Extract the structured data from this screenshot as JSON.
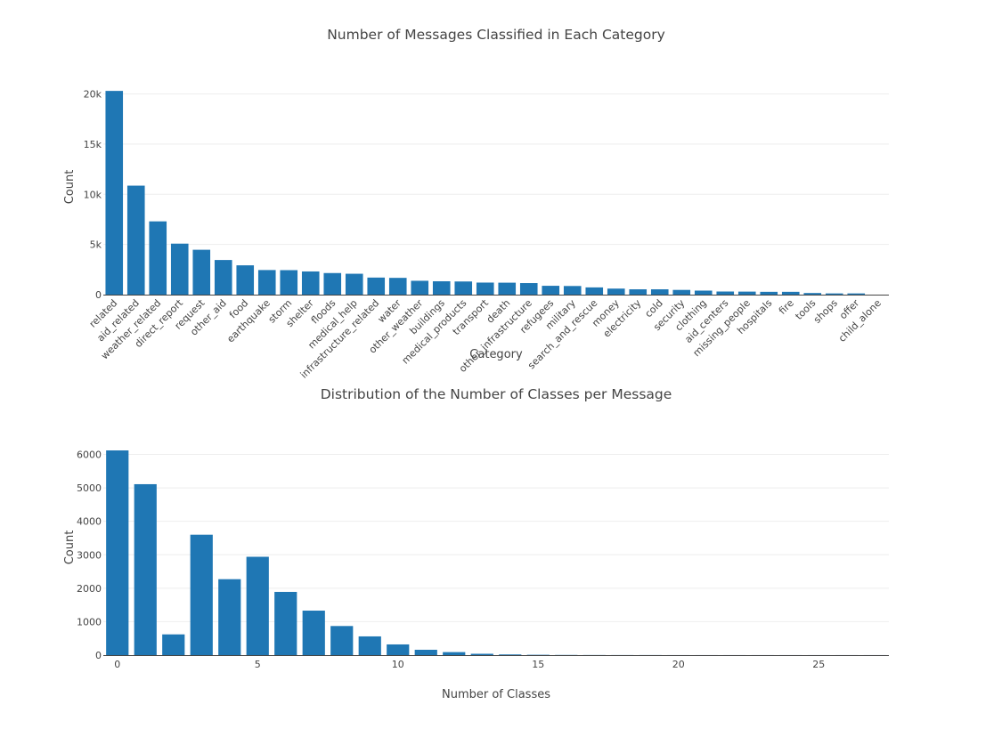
{
  "chart_data": [
    {
      "type": "bar",
      "title": "Number of Messages Classified in Each Category",
      "xlabel": "Category",
      "ylabel": "Count",
      "ylim": [
        0,
        20400
      ],
      "yticks": [
        0,
        5000,
        10000,
        15000,
        20000
      ],
      "ytick_labels": [
        "0",
        "5k",
        "10k",
        "15k",
        "20k"
      ],
      "grid": true,
      "bar_color": "#1f77b4",
      "categories": [
        "related",
        "aid_related",
        "weather_related",
        "direct_report",
        "request",
        "other_aid",
        "food",
        "earthquake",
        "storm",
        "shelter",
        "floods",
        "medical_help",
        "infrastructure_related",
        "water",
        "other_weather",
        "buildings",
        "medical_products",
        "transport",
        "death",
        "other_infrastructure",
        "refugees",
        "military",
        "search_and_rescue",
        "money",
        "electricity",
        "cold",
        "security",
        "clothing",
        "aid_centers",
        "missing_people",
        "hospitals",
        "fire",
        "tools",
        "shops",
        "offer",
        "child_alone"
      ],
      "values": [
        20300,
        10860,
        7300,
        5080,
        4470,
        3450,
        2920,
        2450,
        2440,
        2310,
        2150,
        2080,
        1700,
        1670,
        1380,
        1330,
        1310,
        1200,
        1190,
        1150,
        880,
        860,
        720,
        600,
        530,
        530,
        470,
        400,
        310,
        300,
        280,
        280,
        160,
        120,
        120,
        0
      ]
    },
    {
      "type": "bar",
      "title": "Distribution of the Number of Classes per Message",
      "xlabel": "Number of Classes",
      "ylabel": "Count",
      "xlim": [
        -0.5,
        27.5
      ],
      "ylim": [
        0,
        6120
      ],
      "xticks": [
        0,
        5,
        10,
        15,
        20,
        25
      ],
      "yticks": [
        0,
        1000,
        2000,
        3000,
        4000,
        5000,
        6000
      ],
      "grid": true,
      "bar_color": "#1f77b4",
      "x": [
        0,
        1,
        2,
        3,
        4,
        5,
        6,
        7,
        8,
        9,
        10,
        11,
        12,
        13,
        14,
        15,
        16,
        17,
        18,
        19,
        20,
        21,
        22,
        23,
        24,
        25,
        26,
        27
      ],
      "values": [
        6120,
        5110,
        620,
        3600,
        2270,
        2940,
        1890,
        1330,
        870,
        560,
        320,
        160,
        90,
        40,
        20,
        10,
        5,
        3,
        2,
        2,
        1,
        1,
        1,
        1,
        1,
        1,
        1,
        1
      ]
    }
  ]
}
